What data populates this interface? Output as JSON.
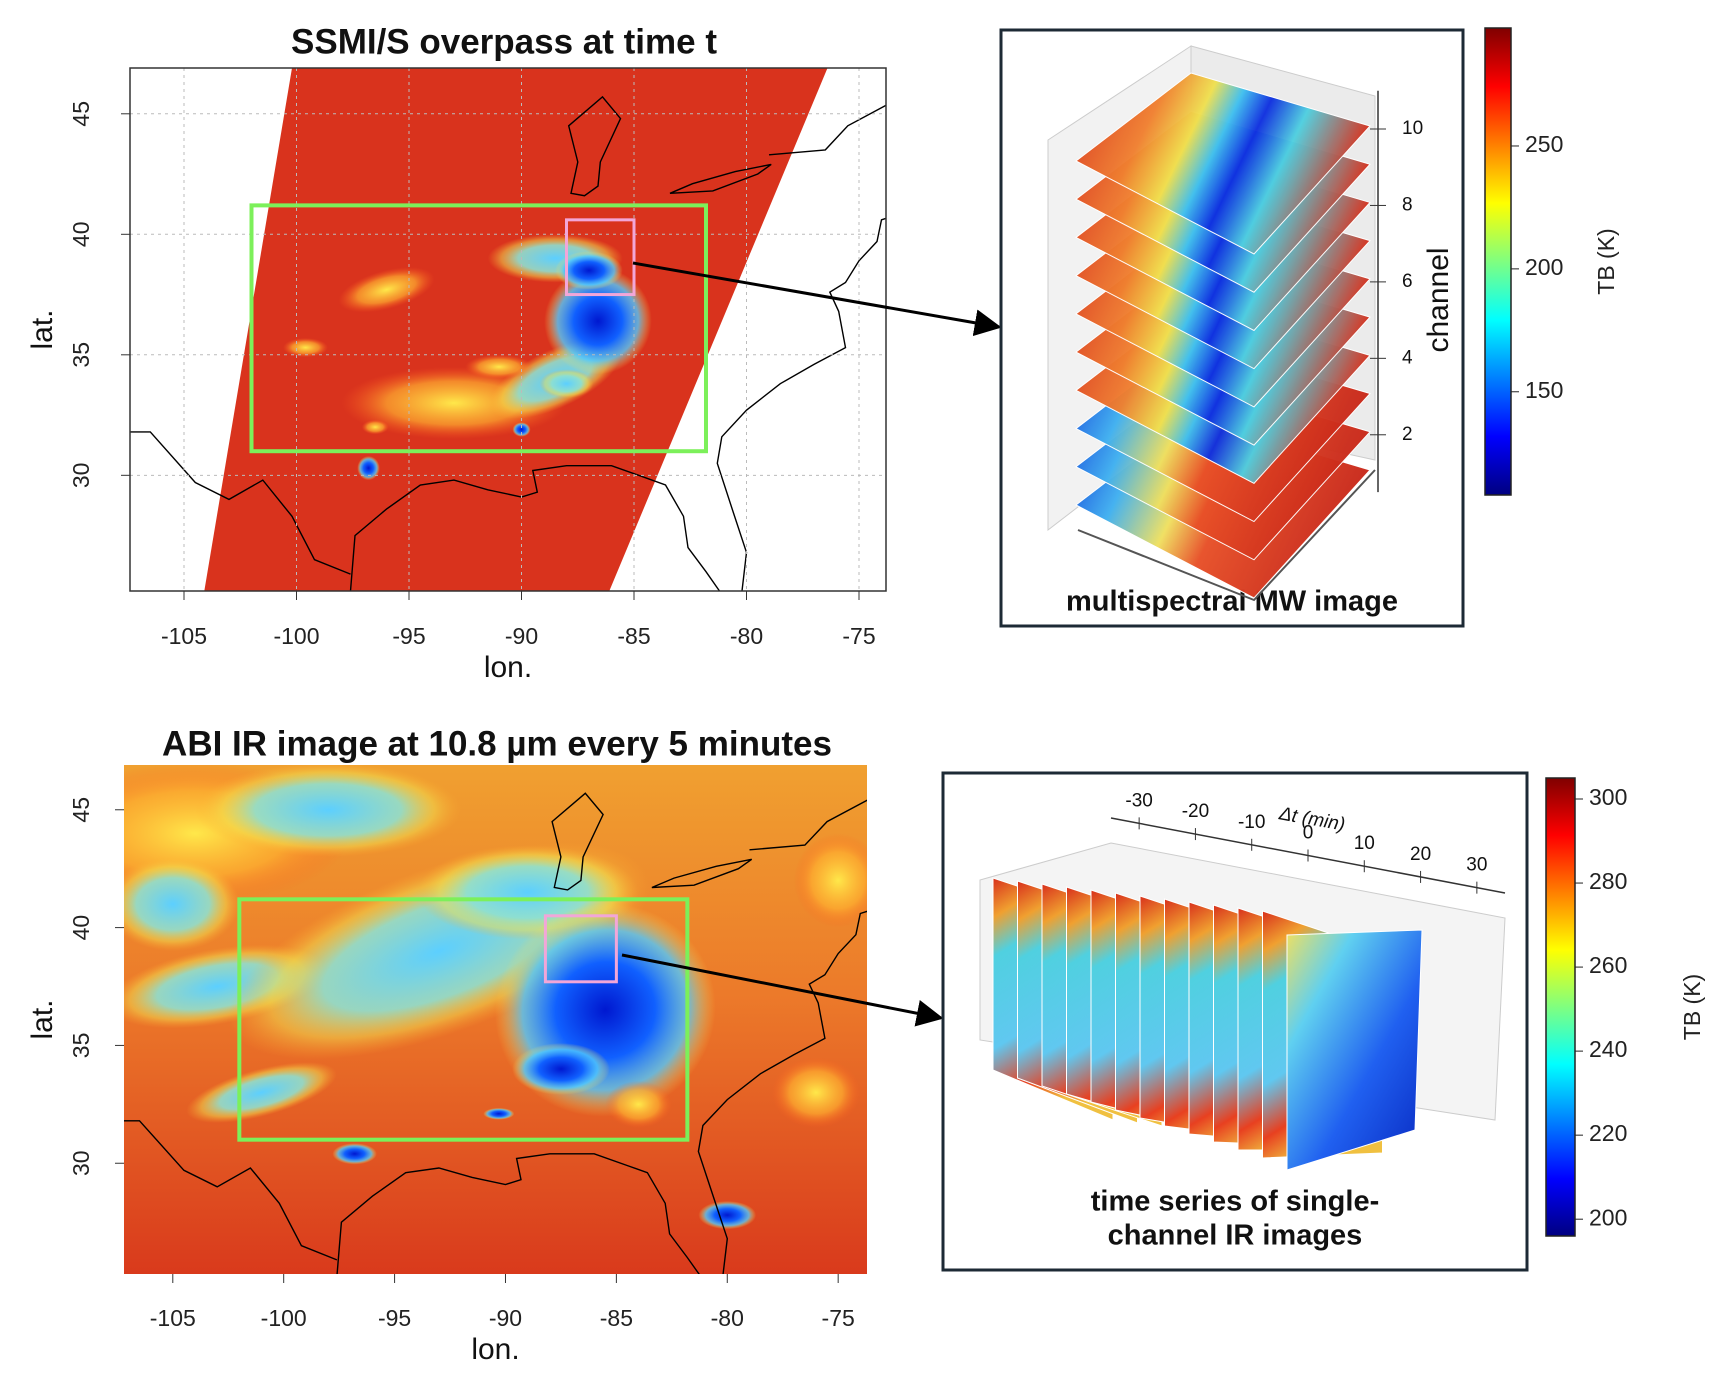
{
  "chart_data": [
    {
      "type": "map",
      "title": "SSMI/S overpass at time t",
      "xlabel": "lon.",
      "ylabel": "lat.",
      "xlim": [
        -107.4,
        -73.8
      ],
      "ylim": [
        25.2,
        46.9
      ],
      "xticks": [
        -105,
        -100,
        -95,
        -90,
        -85,
        -80,
        -75
      ],
      "yticks": [
        30,
        35,
        40,
        45
      ],
      "inset": {
        "type": "stack",
        "caption": [
          "multispectral MW image"
        ],
        "axis_label": "channel",
        "lim": [
          0.5,
          11
        ],
        "ticks": [
          2,
          4,
          6,
          8,
          10
        ]
      },
      "colorbar": {
        "label": "TB (K)",
        "lim": [
          108,
          298
        ],
        "ticks": [
          150,
          200,
          250
        ]
      }
    },
    {
      "type": "map",
      "title": "ABI IR image at 10.8 µm every 5 minutes",
      "xlabel": "lon.",
      "ylabel": "lat.",
      "xlim": [
        -107.2,
        -73.7
      ],
      "ylim": [
        25.3,
        46.9
      ],
      "xticks": [
        -105,
        -100,
        -95,
        -90,
        -85,
        -80,
        -75
      ],
      "yticks": [
        30,
        35,
        40,
        45
      ],
      "inset": {
        "type": "sequence",
        "caption": [
          "time series of single-",
          "channel IR images"
        ],
        "axis_label": "Δt (min)",
        "lim": [
          -35,
          35
        ],
        "ticks": [
          -30,
          -20,
          -10,
          0,
          10,
          20,
          30
        ]
      },
      "colorbar": {
        "label": "TB (K)",
        "lim": [
          196,
          305
        ],
        "ticks": [
          200,
          220,
          240,
          260,
          280,
          300
        ]
      }
    }
  ]
}
